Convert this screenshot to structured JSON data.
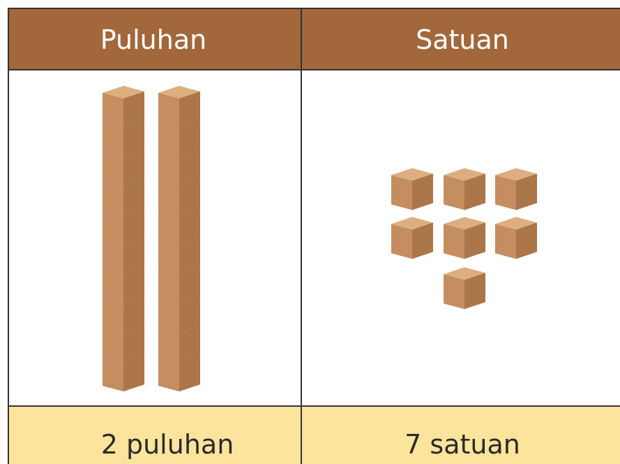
{
  "table": {
    "headers": [
      "Puluhan",
      "Satuan"
    ],
    "footer": [
      "2 puluhan",
      "7 satuan"
    ]
  }
}
